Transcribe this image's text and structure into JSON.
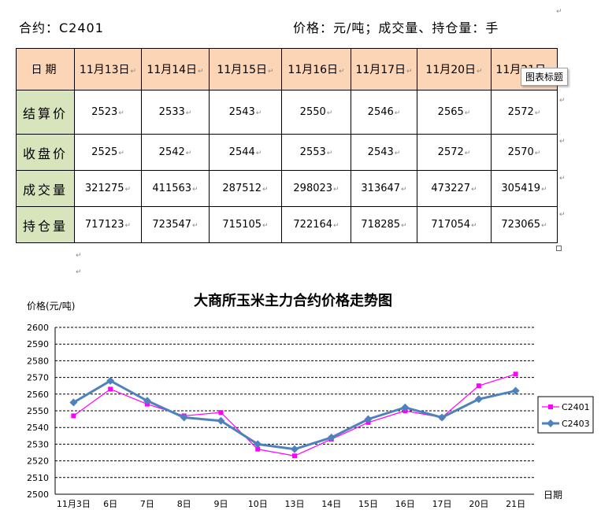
{
  "header": {
    "contract": "合约：C2401",
    "units": "价格：元/吨；成交量、持仓量：手"
  },
  "table": {
    "corner_label": "日期",
    "dates": [
      "11月13日",
      "11月14日",
      "11月15日",
      "11月16日",
      "11月17日",
      "11月20日",
      "11月21日"
    ],
    "rows": [
      {
        "label": "结算价",
        "values": [
          "2523",
          "2533",
          "2543",
          "2550",
          "2546",
          "2565",
          "2572"
        ]
      },
      {
        "label": "收盘价",
        "values": [
          "2525",
          "2542",
          "2544",
          "2553",
          "2543",
          "2572",
          "2570"
        ]
      },
      {
        "label": "成交量",
        "values": [
          "321275",
          "411563",
          "287512",
          "298023",
          "313647",
          "473227",
          "305419"
        ]
      },
      {
        "label": "持仓量",
        "values": [
          "717123",
          "723547",
          "715105",
          "722164",
          "718285",
          "717054",
          "723065"
        ]
      }
    ],
    "tooltip": "图表标题"
  },
  "chart_data": {
    "type": "line",
    "title": "大商所玉米主力合约价格走势图",
    "ylabel": "价格(元/吨)",
    "xlabel": "日期",
    "ylim": [
      2500,
      2600
    ],
    "y_ticks": [
      2500,
      2510,
      2520,
      2530,
      2540,
      2550,
      2560,
      2570,
      2580,
      2590,
      2600
    ],
    "x_ticks": [
      "11月3日",
      "6日",
      "7日",
      "8日",
      "9日",
      "10日",
      "13日",
      "14日",
      "15日",
      "16日",
      "17日",
      "20日",
      "21日"
    ],
    "grid": true,
    "legend_position": "right",
    "series": [
      {
        "name": "C2401",
        "color": "#ff00ff",
        "marker": "square",
        "values": [
          2547,
          2563,
          2554,
          2547,
          2549,
          2527,
          2523,
          2533,
          2543,
          2550,
          2546,
          2565,
          2572
        ]
      },
      {
        "name": "C2403",
        "color": "#4f81bd",
        "marker": "diamond",
        "values": [
          2555,
          2568,
          2556,
          2546,
          2544,
          2530,
          2527,
          2534,
          2545,
          2552,
          2546,
          2557,
          2562
        ]
      }
    ]
  },
  "pilcrow": "↵"
}
